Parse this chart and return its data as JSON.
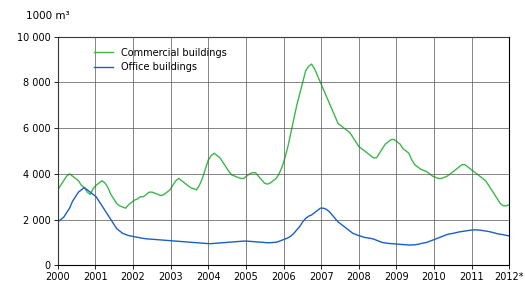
{
  "title_units": "1000 m³",
  "xlim": [
    0,
    150
  ],
  "ylim": [
    0,
    10000
  ],
  "yticks": [
    0,
    2000,
    4000,
    6000,
    8000,
    10000
  ],
  "ytick_labels": [
    "0",
    "2 000",
    "4 000",
    "6 000",
    "8 000",
    "10 000"
  ],
  "xtick_labels": [
    "2000",
    "2001",
    "2002",
    "2003",
    "2004",
    "2005",
    "2006",
    "2007",
    "2008",
    "2009",
    "2010",
    "2011",
    "2012*"
  ],
  "commercial_color": "#3cb84a",
  "office_color": "#1a5fc8",
  "legend_commercial": "Commercial buildings",
  "legend_office": "Office buildings",
  "background_color": "#ffffff",
  "commercial_data": [
    3300,
    3500,
    3700,
    3900,
    4000,
    3900,
    3800,
    3700,
    3500,
    3400,
    3200,
    3100,
    3350,
    3500,
    3600,
    3700,
    3600,
    3400,
    3100,
    2900,
    2700,
    2600,
    2550,
    2500,
    2650,
    2750,
    2850,
    2900,
    3000,
    3000,
    3100,
    3200,
    3200,
    3150,
    3100,
    3050,
    3100,
    3200,
    3300,
    3500,
    3700,
    3800,
    3700,
    3600,
    3500,
    3400,
    3350,
    3300,
    3500,
    3800,
    4200,
    4600,
    4800,
    4900,
    4800,
    4700,
    4500,
    4300,
    4100,
    3950,
    3900,
    3850,
    3800,
    3800,
    3900,
    4000,
    4050,
    4050,
    3900,
    3750,
    3600,
    3550,
    3600,
    3700,
    3800,
    4000,
    4300,
    4700,
    5200,
    5800,
    6400,
    7000,
    7500,
    8000,
    8500,
    8700,
    8800,
    8600,
    8300,
    8000,
    7700,
    7400,
    7100,
    6800,
    6500,
    6200,
    6100,
    6000,
    5900,
    5800,
    5600,
    5400,
    5200,
    5100,
    5000,
    4900,
    4800,
    4700,
    4700,
    4900,
    5100,
    5300,
    5400,
    5500,
    5500,
    5400,
    5300,
    5100,
    5000,
    4900,
    4600,
    4400,
    4300,
    4200,
    4150,
    4100,
    4000,
    3900,
    3850,
    3800,
    3800,
    3850,
    3900,
    4000,
    4100,
    4200,
    4300,
    4400,
    4400,
    4300,
    4200,
    4100,
    4000,
    3900,
    3800,
    3700,
    3500,
    3300,
    3100,
    2900,
    2700,
    2600,
    2600,
    2650
  ],
  "office_data": [
    1900,
    2000,
    2100,
    2300,
    2500,
    2800,
    3000,
    3200,
    3300,
    3400,
    3300,
    3200,
    3100,
    3000,
    2800,
    2600,
    2400,
    2200,
    2000,
    1800,
    1600,
    1500,
    1400,
    1350,
    1300,
    1280,
    1250,
    1230,
    1200,
    1180,
    1160,
    1150,
    1140,
    1130,
    1120,
    1110,
    1100,
    1090,
    1080,
    1070,
    1060,
    1050,
    1040,
    1030,
    1020,
    1010,
    1000,
    990,
    980,
    970,
    960,
    950,
    950,
    960,
    970,
    980,
    990,
    1000,
    1010,
    1020,
    1030,
    1040,
    1050,
    1060,
    1060,
    1050,
    1040,
    1030,
    1020,
    1010,
    1000,
    990,
    990,
    1000,
    1010,
    1050,
    1100,
    1150,
    1200,
    1280,
    1400,
    1550,
    1700,
    1900,
    2050,
    2150,
    2200,
    2300,
    2400,
    2500,
    2500,
    2450,
    2350,
    2200,
    2050,
    1900,
    1800,
    1700,
    1600,
    1500,
    1400,
    1350,
    1300,
    1260,
    1220,
    1200,
    1180,
    1150,
    1100,
    1050,
    1000,
    980,
    960,
    950,
    940,
    930,
    920,
    910,
    900,
    890,
    890,
    900,
    920,
    950,
    980,
    1000,
    1050,
    1100,
    1150,
    1200,
    1250,
    1300,
    1350,
    1380,
    1400,
    1430,
    1460,
    1480,
    1500,
    1520,
    1540,
    1550,
    1550,
    1540,
    1520,
    1500,
    1480,
    1450,
    1420,
    1380,
    1360,
    1340,
    1310,
    1290
  ]
}
